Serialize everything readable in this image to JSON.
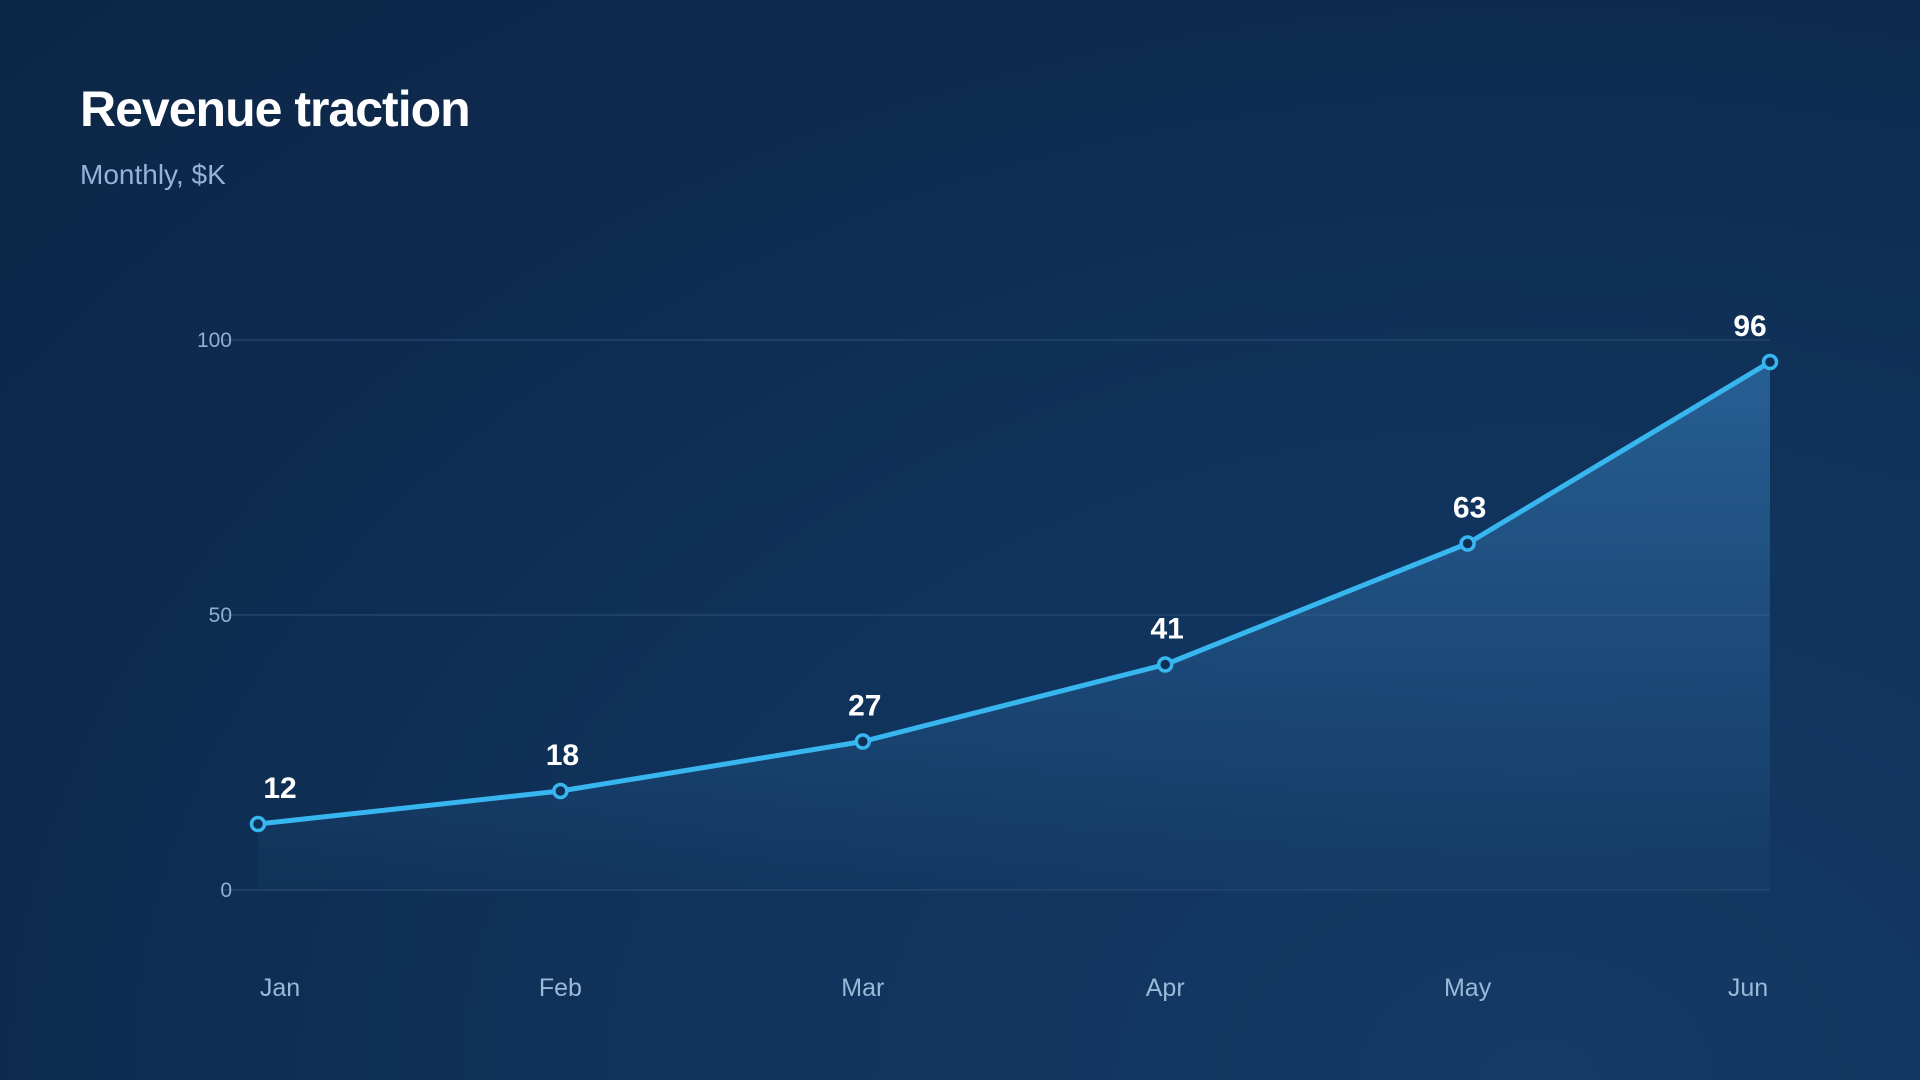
{
  "header": {
    "title": "Revenue traction",
    "subtitle": "Monthly, $K"
  },
  "colors": {
    "line": "#38b6f0",
    "area_top": "#2f6ea6",
    "grid": "#24456d",
    "background": "#0e2a4d"
  },
  "chart_data": {
    "type": "line",
    "title": "Revenue traction",
    "subtitle": "Monthly, $K",
    "categories": [
      "Jan",
      "Feb",
      "Mar",
      "Apr",
      "May",
      "Jun"
    ],
    "series": [
      {
        "values": [
          12,
          18,
          27,
          41,
          63,
          96
        ]
      }
    ],
    "y_ticks": [
      0,
      50,
      100
    ],
    "ylim": [
      0,
      100
    ],
    "grid": true,
    "area_fill": true,
    "data_labels": true,
    "legend": "none"
  }
}
